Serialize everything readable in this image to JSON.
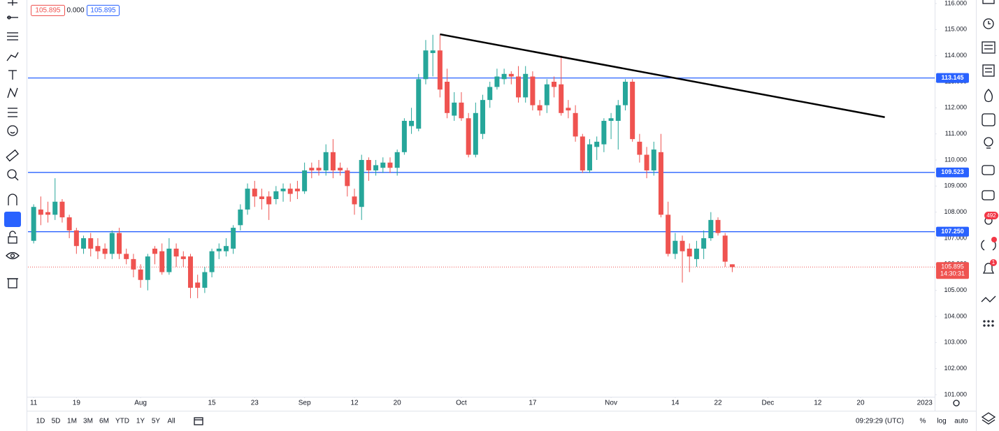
{
  "chart_data": {
    "type": "candlestick",
    "open": [
      106.9,
      108.1,
      108.0,
      107.9,
      108.4,
      107.8,
      107.3,
      106.6,
      107.0,
      106.7,
      106.6,
      106.4,
      107.2,
      106.4,
      106.2,
      105.8,
      105.4,
      106.6,
      106.5,
      105.7,
      106.6,
      106.3,
      106.3,
      105.3,
      105.1,
      105.7,
      106.5,
      106.5,
      106.6,
      107.5,
      108.1,
      108.9,
      108.6,
      108.6,
      108.5,
      108.8,
      108.9,
      108.9,
      108.8,
      109.7,
      109.7,
      109.6,
      110.3,
      109.7,
      109.6,
      108.6,
      108.2,
      110.0,
      109.6,
      109.7,
      109.9,
      109.7,
      110.3,
      111.3,
      111.2,
      113.1,
      114.1,
      114.2,
      113.0,
      111.7,
      112.2,
      111.6,
      110.2,
      111.0,
      112.3,
      112.8,
      113.1,
      113.3,
      113.2,
      112.4,
      113.2,
      112.1,
      112.1,
      113.0,
      112.9,
      112.0,
      111.8,
      110.9,
      109.6,
      110.5,
      110.6,
      111.5,
      111.5,
      112.1,
      113.0,
      110.7,
      110.2,
      109.6,
      110.3,
      107.9,
      106.4,
      106.9,
      106.6,
      106.2,
      106.6,
      107.0,
      107.7,
      107.1,
      106.0
    ],
    "high": [
      108.3,
      108.6,
      108.4,
      109.3,
      108.5,
      107.9,
      107.4,
      107.1,
      107.2,
      107.0,
      106.8,
      107.3,
      107.4,
      106.6,
      106.4,
      106.0,
      106.4,
      106.7,
      106.8,
      107.0,
      106.8,
      106.5,
      106.4,
      105.6,
      105.9,
      106.6,
      106.8,
      107.0,
      107.5,
      108.3,
      109.1,
      109.2,
      108.9,
      108.8,
      109.0,
      109.1,
      109.1,
      109.2,
      109.9,
      109.9,
      110.0,
      110.6,
      110.8,
      109.9,
      109.7,
      108.9,
      110.2,
      110.1,
      110.0,
      110.1,
      110.1,
      110.4,
      111.6,
      112.0,
      113.3,
      114.6,
      114.8,
      114.8,
      113.5,
      112.6,
      112.6,
      111.8,
      112.2,
      112.5,
      113.0,
      113.5,
      113.5,
      113.4,
      113.6,
      113.6,
      113.4,
      112.3,
      113.1,
      113.2,
      114.0,
      112.3,
      112.1,
      111.0,
      110.8,
      110.9,
      111.6,
      111.8,
      112.3,
      113.1,
      113.1,
      111.0,
      110.5,
      110.7,
      111.0,
      108.4,
      107.2,
      107.1,
      106.8,
      106.9,
      107.3,
      108.0,
      107.8,
      107.2,
      106.0
    ],
    "low": [
      106.8,
      107.5,
      107.6,
      107.7,
      107.6,
      107.0,
      106.4,
      106.4,
      106.3,
      106.2,
      106.2,
      106.2,
      106.2,
      106.0,
      105.5,
      105.1,
      105.0,
      106.0,
      105.6,
      105.6,
      105.9,
      105.9,
      104.7,
      104.7,
      104.9,
      105.5,
      106.2,
      106.3,
      106.4,
      107.3,
      107.9,
      108.2,
      108.1,
      107.7,
      108.3,
      108.4,
      108.4,
      108.5,
      108.7,
      109.3,
      109.4,
      109.4,
      109.3,
      109.4,
      108.6,
      107.9,
      107.7,
      109.2,
      109.4,
      109.5,
      109.5,
      109.4,
      110.2,
      111.0,
      111.1,
      112.9,
      113.2,
      112.4,
      111.6,
      111.5,
      111.5,
      110.1,
      110.1,
      110.8,
      112.0,
      112.7,
      112.9,
      112.9,
      112.2,
      112.2,
      111.9,
      111.7,
      111.8,
      112.4,
      111.7,
      111.6,
      110.7,
      109.5,
      109.5,
      110.0,
      110.3,
      110.8,
      110.4,
      111.9,
      110.7,
      109.9,
      109.3,
      109.4,
      107.8,
      106.3,
      106.2,
      105.3,
      105.7,
      105.9,
      106.2,
      106.9,
      107.1,
      105.9,
      105.7
    ],
    "close": [
      108.2,
      107.9,
      107.9,
      108.4,
      107.8,
      107.3,
      106.7,
      107.0,
      106.6,
      106.5,
      106.4,
      107.2,
      106.4,
      106.2,
      105.8,
      105.4,
      106.3,
      106.4,
      105.7,
      106.6,
      106.3,
      106.2,
      105.1,
      105.1,
      105.7,
      106.5,
      106.6,
      106.7,
      107.4,
      108.1,
      108.9,
      108.6,
      108.5,
      108.3,
      108.8,
      108.9,
      108.7,
      108.8,
      109.6,
      109.6,
      109.6,
      110.3,
      109.6,
      109.6,
      109.0,
      108.3,
      110.0,
      109.6,
      109.8,
      109.9,
      109.7,
      110.3,
      111.5,
      111.5,
      113.1,
      114.2,
      114.2,
      112.7,
      111.8,
      112.2,
      111.6,
      110.2,
      111.8,
      112.3,
      112.8,
      113.2,
      113.3,
      113.2,
      112.4,
      113.3,
      112.1,
      111.9,
      112.9,
      112.8,
      111.8,
      111.9,
      110.9,
      109.6,
      110.6,
      110.7,
      111.5,
      111.6,
      112.1,
      113.0,
      110.8,
      110.2,
      109.6,
      110.4,
      107.9,
      106.4,
      106.9,
      106.5,
      106.3,
      106.6,
      107.0,
      107.7,
      107.2,
      106.1,
      105.895
    ],
    "up_color": "#26a69a",
    "down_color": "#ef5350",
    "xlim": [
      -0.8,
      126.4
    ],
    "xticks": [
      {
        "value": 0,
        "label": "11"
      },
      {
        "value": 6,
        "label": "19"
      },
      {
        "value": 15,
        "label": "Aug"
      },
      {
        "value": 25,
        "label": "15"
      },
      {
        "value": 31,
        "label": "23"
      },
      {
        "value": 38,
        "label": "Sep"
      },
      {
        "value": 45,
        "label": "12"
      },
      {
        "value": 51,
        "label": "20"
      },
      {
        "value": 60,
        "label": "Oct"
      },
      {
        "value": 70,
        "label": "17"
      },
      {
        "value": 81,
        "label": "Nov"
      },
      {
        "value": 90,
        "label": "14"
      },
      {
        "value": 96,
        "label": "22"
      },
      {
        "value": 103,
        "label": "Dec"
      },
      {
        "value": 110,
        "label": "12"
      },
      {
        "value": 116,
        "label": "20"
      },
      {
        "value": 125,
        "label": "2023"
      }
    ],
    "ylim": [
      100.92,
      116.134
    ],
    "yticks": [
      {
        "value": 101,
        "label": "101.000"
      },
      {
        "value": 102,
        "label": "102.000"
      },
      {
        "value": 103,
        "label": "103.000"
      },
      {
        "value": 104,
        "label": "104.000"
      },
      {
        "value": 105,
        "label": "105.000"
      },
      {
        "value": 106,
        "label": "106.000"
      },
      {
        "value": 107,
        "label": "107.000"
      },
      {
        "value": 108,
        "label": "108.000"
      },
      {
        "value": 109,
        "label": "109.000"
      },
      {
        "value": 110,
        "label": "110.000"
      },
      {
        "value": 111,
        "label": "111.000"
      },
      {
        "value": 112,
        "label": "112.000"
      },
      {
        "value": 113,
        "label": "113.000"
      },
      {
        "value": 114,
        "label": "114.000"
      },
      {
        "value": 115,
        "label": "115.000"
      },
      {
        "value": 116,
        "label": "116.000"
      }
    ],
    "grid": false,
    "hlines": [
      {
        "value": 113.145,
        "label": "113.145"
      },
      {
        "value": 109.523,
        "label": "109.523"
      },
      {
        "value": 107.25,
        "label": "107.250"
      }
    ],
    "hline_color": "#2962ff",
    "trendline": {
      "x": [
        57,
        119.4
      ],
      "y": [
        114.82,
        111.64
      ],
      "color": "#000000"
    },
    "last_price": {
      "value": 105.895,
      "label": "105.895"
    },
    "countdown": "14:30:31"
  },
  "ui": {
    "legend": {
      "bid": "105.895",
      "spread": "0.000",
      "ask": "105.895"
    },
    "ranges": [
      "1D",
      "5D",
      "1M",
      "3M",
      "6M",
      "YTD",
      "1Y",
      "5Y",
      "All"
    ],
    "clock": "09:29:29 (UTC)",
    "scale_buttons": [
      "%",
      "log",
      "auto"
    ],
    "badges": [
      "492",
      "1"
    ]
  }
}
